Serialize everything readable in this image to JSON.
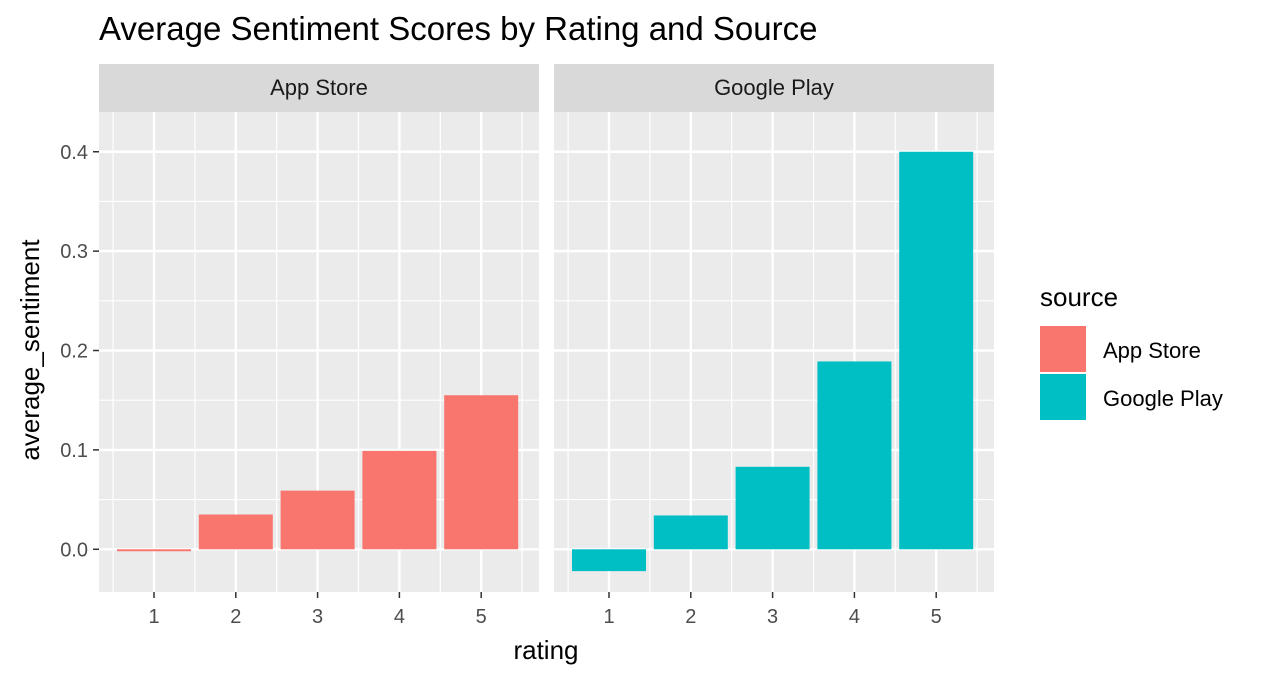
{
  "chart_data": {
    "type": "bar",
    "title": "Average Sentiment Scores by Rating and Source",
    "xlabel": "rating",
    "ylabel": "average_sentiment",
    "categories": [
      "1",
      "2",
      "3",
      "4",
      "5"
    ],
    "yticks": [
      "0.0",
      "0.1",
      "0.2",
      "0.3",
      "0.4"
    ],
    "ylim": [
      -0.043,
      0.44
    ],
    "grid": true,
    "legend": {
      "title": "source",
      "placement": "right",
      "entries": [
        "App Store",
        "Google Play"
      ]
    },
    "panels": [
      {
        "name": "App Store",
        "color": "#F8766D",
        "values": [
          -0.002,
          0.035,
          0.059,
          0.099,
          0.155
        ]
      },
      {
        "name": "Google Play",
        "color": "#00BFC4",
        "values": [
          -0.022,
          0.034,
          0.083,
          0.189,
          0.4
        ]
      }
    ],
    "colors": {
      "panel_background": "#EBEBEB",
      "strip_background": "#D9D9D9",
      "grid_major": "#FFFFFF"
    }
  }
}
